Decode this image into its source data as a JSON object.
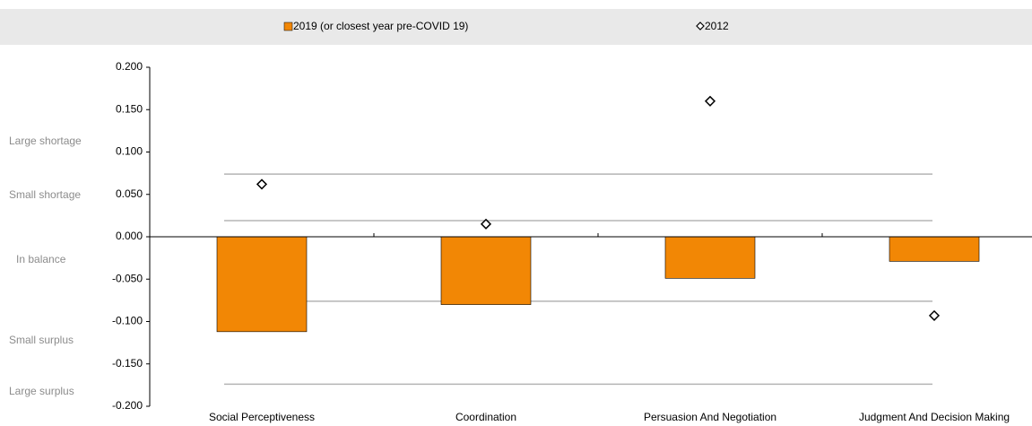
{
  "chart_data": {
    "type": "bar",
    "categories": [
      "Social Perceptiveness",
      "Coordination",
      "Persuasion And Negotiation",
      "Judgment And Decision Making"
    ],
    "series": [
      {
        "name": "2019 (or closest year pre-COVID 19)",
        "color": "#f28705",
        "kind": "bar",
        "values": [
          -0.112,
          -0.08,
          -0.049,
          -0.029
        ]
      },
      {
        "name": "2012",
        "color": "#000000",
        "kind": "diamond",
        "values": [
          0.062,
          0.015,
          0.16,
          -0.093
        ]
      }
    ],
    "ylim": [
      -0.2,
      0.2
    ],
    "yticks": [
      {
        "value": -0.2,
        "label": "-0.200"
      },
      {
        "value": -0.15,
        "label": "-0.150"
      },
      {
        "value": -0.1,
        "label": "-0.100"
      },
      {
        "value": -0.05,
        "label": "-0.050"
      },
      {
        "value": 0,
        "label": "0.000"
      },
      {
        "value": 0.05,
        "label": "0.050"
      },
      {
        "value": 0.1,
        "label": "0.100"
      },
      {
        "value": 0.15,
        "label": "0.150"
      },
      {
        "value": 0.2,
        "label": "0.200"
      }
    ],
    "thresholds": [
      0.074,
      0.019,
      -0.076,
      -0.174
    ],
    "band_labels": [
      "Large shortage",
      "Small shortage",
      "In balance",
      "Small surplus",
      "Large surplus"
    ],
    "legend": "top"
  }
}
